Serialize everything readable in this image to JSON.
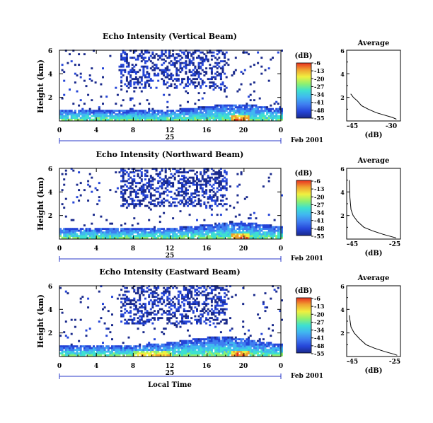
{
  "shared": {
    "ylabel": "Height (km)",
    "colorbar_title": "(dB)",
    "colorbar_ticks": [
      "-6",
      "-13",
      "-20",
      "-27",
      "-34",
      "-41",
      "-48",
      "-55"
    ],
    "x_tick_labels": [
      "0",
      "4",
      "8",
      "12",
      "16",
      "20",
      "0"
    ],
    "date_day": "25",
    "date_label": "Feb 2001",
    "xlabel": "Local Time",
    "avg_title": "Average",
    "avg_xlabel": "(dB)",
    "y_tick_labels": [
      "2",
      "4",
      "6"
    ]
  },
  "colors": {
    "scale": [
      "#1a2a8c",
      "#2545d8",
      "#3f7ef0",
      "#40b8f0",
      "#3ee0d0",
      "#8ef070",
      "#f0f040",
      "#f0a030",
      "#e83020"
    ]
  },
  "chart_data": [
    {
      "type": "heatmap",
      "title": "Echo Intensity (Vertical Beam)",
      "xlabel": "",
      "ylabel": "Height (km)",
      "xlim": [
        0,
        24
      ],
      "ylim": [
        0,
        6
      ],
      "x_ticks": [
        0,
        4,
        8,
        12,
        16,
        20,
        24
      ],
      "y_ticks": [
        2,
        4,
        6
      ],
      "color_range_db": [
        -55,
        -6
      ],
      "colorbar_ticks": [
        -6,
        -13,
        -20,
        -27,
        -34,
        -41,
        -48,
        -55
      ],
      "date": "25 Feb 2001",
      "average_profile": {
        "title": "Average",
        "xlabel": "(dB)",
        "x_tick_labels": [
          "-45",
          "-30"
        ],
        "xlim": [
          -48,
          -28
        ],
        "ylim": [
          0,
          6
        ],
        "points": [
          [
            -46.5,
            2.3
          ],
          [
            -45.5,
            2.0
          ],
          [
            -44,
            1.7
          ],
          [
            -42.5,
            1.3
          ],
          [
            -40,
            1.0
          ],
          [
            -37,
            0.7
          ],
          [
            -34,
            0.5
          ],
          [
            -31,
            0.3
          ],
          [
            -29.5,
            0.15
          ]
        ]
      }
    },
    {
      "type": "heatmap",
      "title": "Echo Intensity (Northward Beam)",
      "xlabel": "",
      "ylabel": "Height (km)",
      "xlim": [
        0,
        24
      ],
      "ylim": [
        0,
        6
      ],
      "x_ticks": [
        0,
        4,
        8,
        12,
        16,
        20,
        24
      ],
      "y_ticks": [
        2,
        4,
        6
      ],
      "color_range_db": [
        -55,
        -6
      ],
      "colorbar_ticks": [
        -6,
        -13,
        -20,
        -27,
        -34,
        -41,
        -48,
        -55
      ],
      "date": "25 Feb 2001",
      "average_profile": {
        "title": "Average",
        "xlabel": "(dB)",
        "x_tick_labels": [
          "-45",
          "-25"
        ],
        "xlim": [
          -48,
          -23
        ],
        "ylim": [
          0,
          6
        ],
        "points": [
          [
            -46.8,
            5.0
          ],
          [
            -46.5,
            3.5
          ],
          [
            -46,
            2.5
          ],
          [
            -45,
            2.0
          ],
          [
            -43,
            1.5
          ],
          [
            -40,
            1.0
          ],
          [
            -36,
            0.7
          ],
          [
            -31,
            0.4
          ],
          [
            -27,
            0.2
          ],
          [
            -25,
            0.1
          ]
        ]
      }
    },
    {
      "type": "heatmap",
      "title": "Echo Intensity (Eastward Beam)",
      "xlabel": "Local Time",
      "ylabel": "Height (km)",
      "xlim": [
        0,
        24
      ],
      "ylim": [
        0,
        6
      ],
      "x_ticks": [
        0,
        4,
        8,
        12,
        16,
        20,
        24
      ],
      "y_ticks": [
        2,
        4,
        6
      ],
      "color_range_db": [
        -55,
        -6
      ],
      "colorbar_ticks": [
        -6,
        -13,
        -20,
        -27,
        -34,
        -41,
        -48,
        -55
      ],
      "date": "25 Feb 2001",
      "average_profile": {
        "title": "Average",
        "xlabel": "(dB)",
        "x_tick_labels": [
          "-45",
          "-25"
        ],
        "xlim": [
          -48,
          -23
        ],
        "ylim": [
          0,
          6
        ],
        "points": [
          [
            -46.8,
            3.5
          ],
          [
            -46,
            2.5
          ],
          [
            -44.5,
            2.0
          ],
          [
            -42,
            1.5
          ],
          [
            -39,
            1.0
          ],
          [
            -35,
            0.7
          ],
          [
            -30,
            0.4
          ],
          [
            -26,
            0.2
          ],
          [
            -24.5,
            0.1
          ]
        ]
      }
    }
  ]
}
